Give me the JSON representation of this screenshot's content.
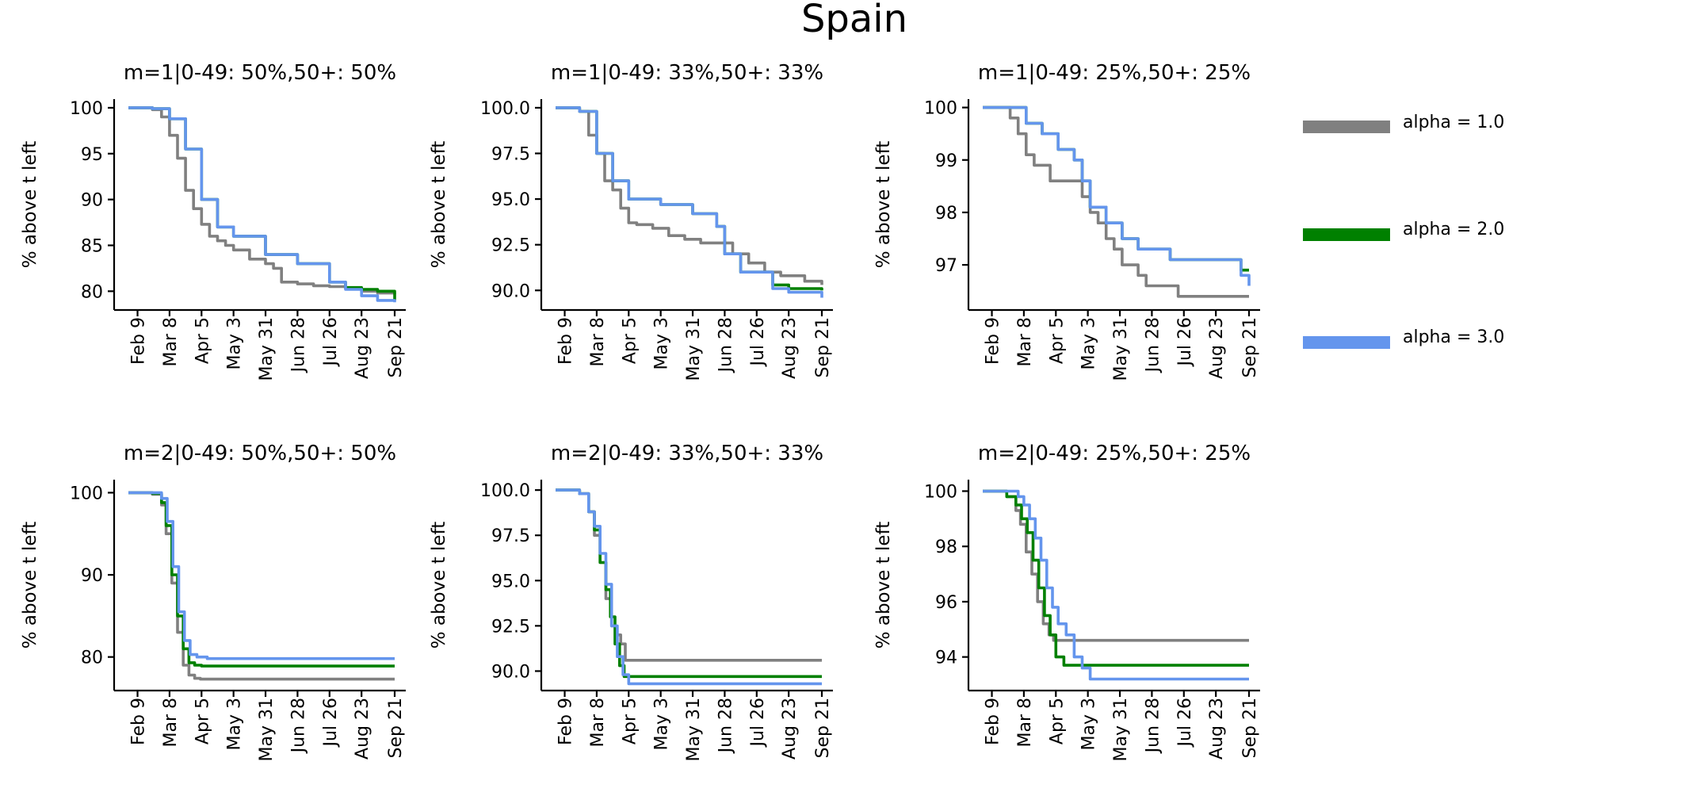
{
  "chart_data": {
    "figure_title": "Spain",
    "x_ticks": [
      "Feb 9",
      "Mar 8",
      "Apr 5",
      "May 3",
      "May 31",
      "Jun 28",
      "Jul 26",
      "Aug 23",
      "Sep 21"
    ],
    "x_domain": [
      "2020-02-01",
      "2020-09-21"
    ],
    "legend": [
      {
        "label": "alpha = 1.0",
        "color": "#808080"
      },
      {
        "label": "alpha = 2.0",
        "color": "#008000"
      },
      {
        "label": "alpha = 3.0",
        "color": "#6495ED"
      }
    ],
    "panels": [
      {
        "type": "line",
        "title": "m=1|0-49: 50%,50+: 50%",
        "ylabel": "% above t left",
        "ylim": [
          78.3,
          100.6
        ],
        "yticks": [
          "100",
          "95",
          "90",
          "85",
          "80"
        ],
        "ytick_values": [
          100,
          95,
          90,
          85,
          80
        ],
        "series": [
          {
            "color": "#808080",
            "x": [
              "2020-02-01",
              "2020-02-22",
              "2020-03-01",
              "2020-03-08",
              "2020-03-15",
              "2020-03-22",
              "2020-03-29",
              "2020-04-05",
              "2020-04-12",
              "2020-04-19",
              "2020-04-26",
              "2020-05-03",
              "2020-05-17",
              "2020-05-31",
              "2020-06-07",
              "2020-06-14",
              "2020-06-28",
              "2020-07-12",
              "2020-07-26",
              "2020-08-09",
              "2020-08-23",
              "2020-09-06",
              "2020-09-21"
            ],
            "y": [
              100,
              99.8,
              99,
              97,
              94.5,
              91,
              89,
              87.3,
              86,
              85.5,
              85,
              84.5,
              83.5,
              83,
              82.5,
              81,
              80.8,
              80.6,
              80.5,
              80.3,
              80,
              79.8,
              79.7
            ]
          },
          {
            "color": "#008000",
            "x": [
              "2020-02-01",
              "2020-02-22",
              "2020-03-08",
              "2020-03-22",
              "2020-04-05",
              "2020-04-19",
              "2020-05-03",
              "2020-05-31",
              "2020-06-28",
              "2020-07-26",
              "2020-08-09",
              "2020-08-23",
              "2020-09-06",
              "2020-09-21"
            ],
            "y": [
              100,
              99.9,
              98.8,
              95.5,
              90,
              87,
              86,
              84,
              83,
              81,
              80.4,
              80.2,
              80,
              79
            ]
          },
          {
            "color": "#6495ED",
            "x": [
              "2020-02-01",
              "2020-02-22",
              "2020-03-08",
              "2020-03-22",
              "2020-04-05",
              "2020-04-19",
              "2020-05-03",
              "2020-05-31",
              "2020-06-28",
              "2020-07-26",
              "2020-08-09",
              "2020-08-23",
              "2020-09-06",
              "2020-09-21"
            ],
            "y": [
              100,
              99.9,
              98.8,
              95.5,
              90,
              87,
              86,
              84,
              83,
              81,
              80.2,
              79.5,
              79,
              78.8
            ]
          }
        ]
      },
      {
        "type": "line",
        "title": "m=1|0-49: 33%,50+: 33%",
        "ylabel": "% above t left",
        "ylim": [
          89.1,
          100.3
        ],
        "yticks": [
          "100.0",
          "97.5",
          "95.0",
          "92.5",
          "90.0"
        ],
        "ytick_values": [
          100,
          97.5,
          95,
          92.5,
          90
        ],
        "series": [
          {
            "color": "#808080",
            "x": [
              "2020-02-01",
              "2020-02-22",
              "2020-03-01",
              "2020-03-08",
              "2020-03-15",
              "2020-03-22",
              "2020-03-29",
              "2020-04-05",
              "2020-04-12",
              "2020-04-26",
              "2020-05-10",
              "2020-05-24",
              "2020-06-07",
              "2020-06-28",
              "2020-07-05",
              "2020-07-19",
              "2020-08-02",
              "2020-08-16",
              "2020-09-06",
              "2020-09-21"
            ],
            "y": [
              100,
              99.8,
              98.5,
              97.5,
              96,
              95.5,
              94.5,
              93.7,
              93.6,
              93.4,
              93,
              92.8,
              92.6,
              92.6,
              92,
              91.5,
              91,
              90.8,
              90.5,
              90.3
            ]
          },
          {
            "color": "#008000",
            "x": [
              "2020-02-01",
              "2020-02-22",
              "2020-03-08",
              "2020-03-22",
              "2020-04-05",
              "2020-05-03",
              "2020-05-31",
              "2020-06-21",
              "2020-06-28",
              "2020-07-12",
              "2020-08-09",
              "2020-08-23",
              "2020-09-21"
            ],
            "y": [
              100,
              99.8,
              97.5,
              96,
              95,
              94.7,
              94.2,
              93.5,
              92,
              91,
              90.3,
              90.1,
              90
            ]
          },
          {
            "color": "#6495ED",
            "x": [
              "2020-02-01",
              "2020-02-22",
              "2020-03-08",
              "2020-03-22",
              "2020-04-05",
              "2020-05-03",
              "2020-05-31",
              "2020-06-21",
              "2020-06-28",
              "2020-07-12",
              "2020-08-09",
              "2020-08-23",
              "2020-09-21"
            ],
            "y": [
              100,
              99.8,
              97.5,
              96,
              95,
              94.7,
              94.2,
              93.5,
              92,
              91,
              90.1,
              89.9,
              89.6
            ]
          }
        ]
      },
      {
        "type": "line",
        "title": "m=1|0-49: 25%,50+: 25%",
        "ylabel": "% above t left",
        "ylim": [
          96.2,
          100.1
        ],
        "yticks": [
          "100",
          "99",
          "98",
          "97"
        ],
        "ytick_values": [
          100,
          99,
          98,
          97
        ],
        "series": [
          {
            "color": "#808080",
            "x": [
              "2020-02-01",
              "2020-02-25",
              "2020-03-03",
              "2020-03-10",
              "2020-03-17",
              "2020-03-31",
              "2020-04-14",
              "2020-04-28",
              "2020-05-05",
              "2020-05-12",
              "2020-05-19",
              "2020-05-26",
              "2020-06-02",
              "2020-06-16",
              "2020-06-23",
              "2020-07-21",
              "2020-09-21"
            ],
            "y": [
              100,
              99.8,
              99.5,
              99.1,
              98.9,
              98.6,
              98.6,
              98.3,
              98,
              97.8,
              97.5,
              97.3,
              97,
              96.8,
              96.6,
              96.4,
              96.4
            ]
          },
          {
            "color": "#008000",
            "x": [
              "2020-02-01",
              "2020-03-03",
              "2020-03-10",
              "2020-03-24",
              "2020-04-07",
              "2020-04-21",
              "2020-04-28",
              "2020-05-05",
              "2020-05-19",
              "2020-06-02",
              "2020-06-16",
              "2020-07-14",
              "2020-08-18",
              "2020-09-11",
              "2020-09-14",
              "2020-09-21"
            ],
            "y": [
              100,
              100,
              99.7,
              99.5,
              99.2,
              99,
              98.6,
              98.1,
              97.8,
              97.5,
              97.3,
              97.1,
              97.1,
              97.1,
              96.9,
              96.9
            ]
          },
          {
            "color": "#6495ED",
            "x": [
              "2020-02-01",
              "2020-03-03",
              "2020-03-10",
              "2020-03-24",
              "2020-04-07",
              "2020-04-21",
              "2020-04-28",
              "2020-05-05",
              "2020-05-19",
              "2020-06-02",
              "2020-06-16",
              "2020-07-14",
              "2020-08-18",
              "2020-09-04",
              "2020-09-14",
              "2020-09-21"
            ],
            "y": [
              100,
              100,
              99.7,
              99.5,
              99.2,
              99,
              98.6,
              98.1,
              97.8,
              97.5,
              97.3,
              97.1,
              97.1,
              97.1,
              96.8,
              96.6
            ]
          }
        ]
      },
      {
        "type": "line",
        "title": "m=2|0-49: 50%,50+: 50%",
        "ylabel": "% above t left",
        "ylim": [
          76.3,
          101.2
        ],
        "yticks": [
          "100",
          "90",
          "80"
        ],
        "ytick_values": [
          100,
          90,
          80
        ],
        "series": [
          {
            "color": "#808080",
            "x": [
              "2020-02-01",
              "2020-02-22",
              "2020-03-01",
              "2020-03-05",
              "2020-03-10",
              "2020-03-15",
              "2020-03-20",
              "2020-03-25",
              "2020-03-30",
              "2020-04-04",
              "2020-04-20",
              "2020-09-21"
            ],
            "y": [
              100,
              99.8,
              98.5,
              95,
              89,
              83,
              79,
              77.8,
              77.4,
              77.3,
              77.3,
              77.3
            ]
          },
          {
            "color": "#008000",
            "x": [
              "2020-02-01",
              "2020-02-22",
              "2020-03-01",
              "2020-03-05",
              "2020-03-10",
              "2020-03-15",
              "2020-03-20",
              "2020-03-25",
              "2020-03-30",
              "2020-04-05",
              "2020-09-21"
            ],
            "y": [
              100,
              99.9,
              98.8,
              96,
              90,
              85,
              81,
              79.3,
              79,
              78.9,
              78.9
            ]
          },
          {
            "color": "#6495ED",
            "x": [
              "2020-02-01",
              "2020-02-22",
              "2020-03-01",
              "2020-03-06",
              "2020-03-11",
              "2020-03-16",
              "2020-03-21",
              "2020-03-26",
              "2020-04-01",
              "2020-04-10",
              "2020-09-21"
            ],
            "y": [
              100,
              100,
              99.3,
              96.5,
              91,
              85.5,
              82,
              80.3,
              80,
              79.8,
              79.8
            ]
          }
        ]
      },
      {
        "type": "line",
        "title": "m=2|0-49: 33%,50+: 33%",
        "ylabel": "% above t left",
        "ylim": [
          89.1,
          100.4
        ],
        "yticks": [
          "100.0",
          "97.5",
          "95.0",
          "92.5",
          "90.0"
        ],
        "ytick_values": [
          100,
          97.5,
          95,
          92.5,
          90
        ],
        "series": [
          {
            "color": "#808080",
            "x": [
              "2020-02-01",
              "2020-02-22",
              "2020-03-01",
              "2020-03-06",
              "2020-03-11",
              "2020-03-16",
              "2020-03-21",
              "2020-03-25",
              "2020-03-29",
              "2020-04-02",
              "2020-09-21"
            ],
            "y": [
              100,
              99.8,
              98.8,
              97.5,
              96,
              94,
              92.5,
              92,
              91.5,
              90.6,
              90.6
            ]
          },
          {
            "color": "#008000",
            "x": [
              "2020-02-01",
              "2020-02-22",
              "2020-03-01",
              "2020-03-06",
              "2020-03-11",
              "2020-03-16",
              "2020-03-20",
              "2020-03-24",
              "2020-03-28",
              "2020-04-01",
              "2020-09-21"
            ],
            "y": [
              100,
              99.8,
              98.8,
              97.8,
              96,
              94.5,
              93,
              91.5,
              90.3,
              89.7,
              89.7
            ]
          },
          {
            "color": "#6495ED",
            "x": [
              "2020-02-01",
              "2020-02-22",
              "2020-03-01",
              "2020-03-06",
              "2020-03-11",
              "2020-03-16",
              "2020-03-21",
              "2020-03-26",
              "2020-03-31",
              "2020-04-05",
              "2020-09-21"
            ],
            "y": [
              100,
              99.8,
              98.8,
              98,
              96.5,
              94.8,
              92.5,
              90.8,
              89.8,
              89.3,
              89.3
            ]
          }
        ]
      },
      {
        "type": "line",
        "title": "m=2|0-49: 25%,50+: 25%",
        "ylabel": "% above t left",
        "ylim": [
          92.9,
          100.3
        ],
        "yticks": [
          "100",
          "98",
          "96",
          "94"
        ],
        "ytick_values": [
          100,
          98,
          96,
          94
        ],
        "series": [
          {
            "color": "#808080",
            "x": [
              "2020-02-01",
              "2020-02-22",
              "2020-03-01",
              "2020-03-05",
              "2020-03-10",
              "2020-03-15",
              "2020-03-20",
              "2020-03-25",
              "2020-03-30",
              "2020-04-03",
              "2020-04-08",
              "2020-09-21"
            ],
            "y": [
              100,
              99.8,
              99.3,
              98.8,
              97.8,
              97,
              96,
              95.2,
              94.8,
              94.6,
              94.6,
              94.6
            ]
          },
          {
            "color": "#008000",
            "x": [
              "2020-02-01",
              "2020-02-22",
              "2020-03-01",
              "2020-03-06",
              "2020-03-11",
              "2020-03-16",
              "2020-03-21",
              "2020-03-26",
              "2020-03-31",
              "2020-04-05",
              "2020-04-12",
              "2020-09-21"
            ],
            "y": [
              100,
              99.8,
              99.5,
              99,
              98.5,
              97.5,
              96.5,
              95.5,
              94.8,
              94,
              93.7,
              93.7
            ]
          },
          {
            "color": "#6495ED",
            "x": [
              "2020-02-01",
              "2020-02-25",
              "2020-03-03",
              "2020-03-08",
              "2020-03-13",
              "2020-03-18",
              "2020-03-23",
              "2020-03-28",
              "2020-04-02",
              "2020-04-07",
              "2020-04-14",
              "2020-04-21",
              "2020-04-28",
              "2020-05-05",
              "2020-09-21"
            ],
            "y": [
              100,
              100,
              99.8,
              99.5,
              99,
              98.3,
              97.5,
              96.5,
              95.8,
              95.2,
              94.8,
              94,
              93.6,
              93.2,
              93.2
            ]
          }
        ]
      }
    ]
  }
}
